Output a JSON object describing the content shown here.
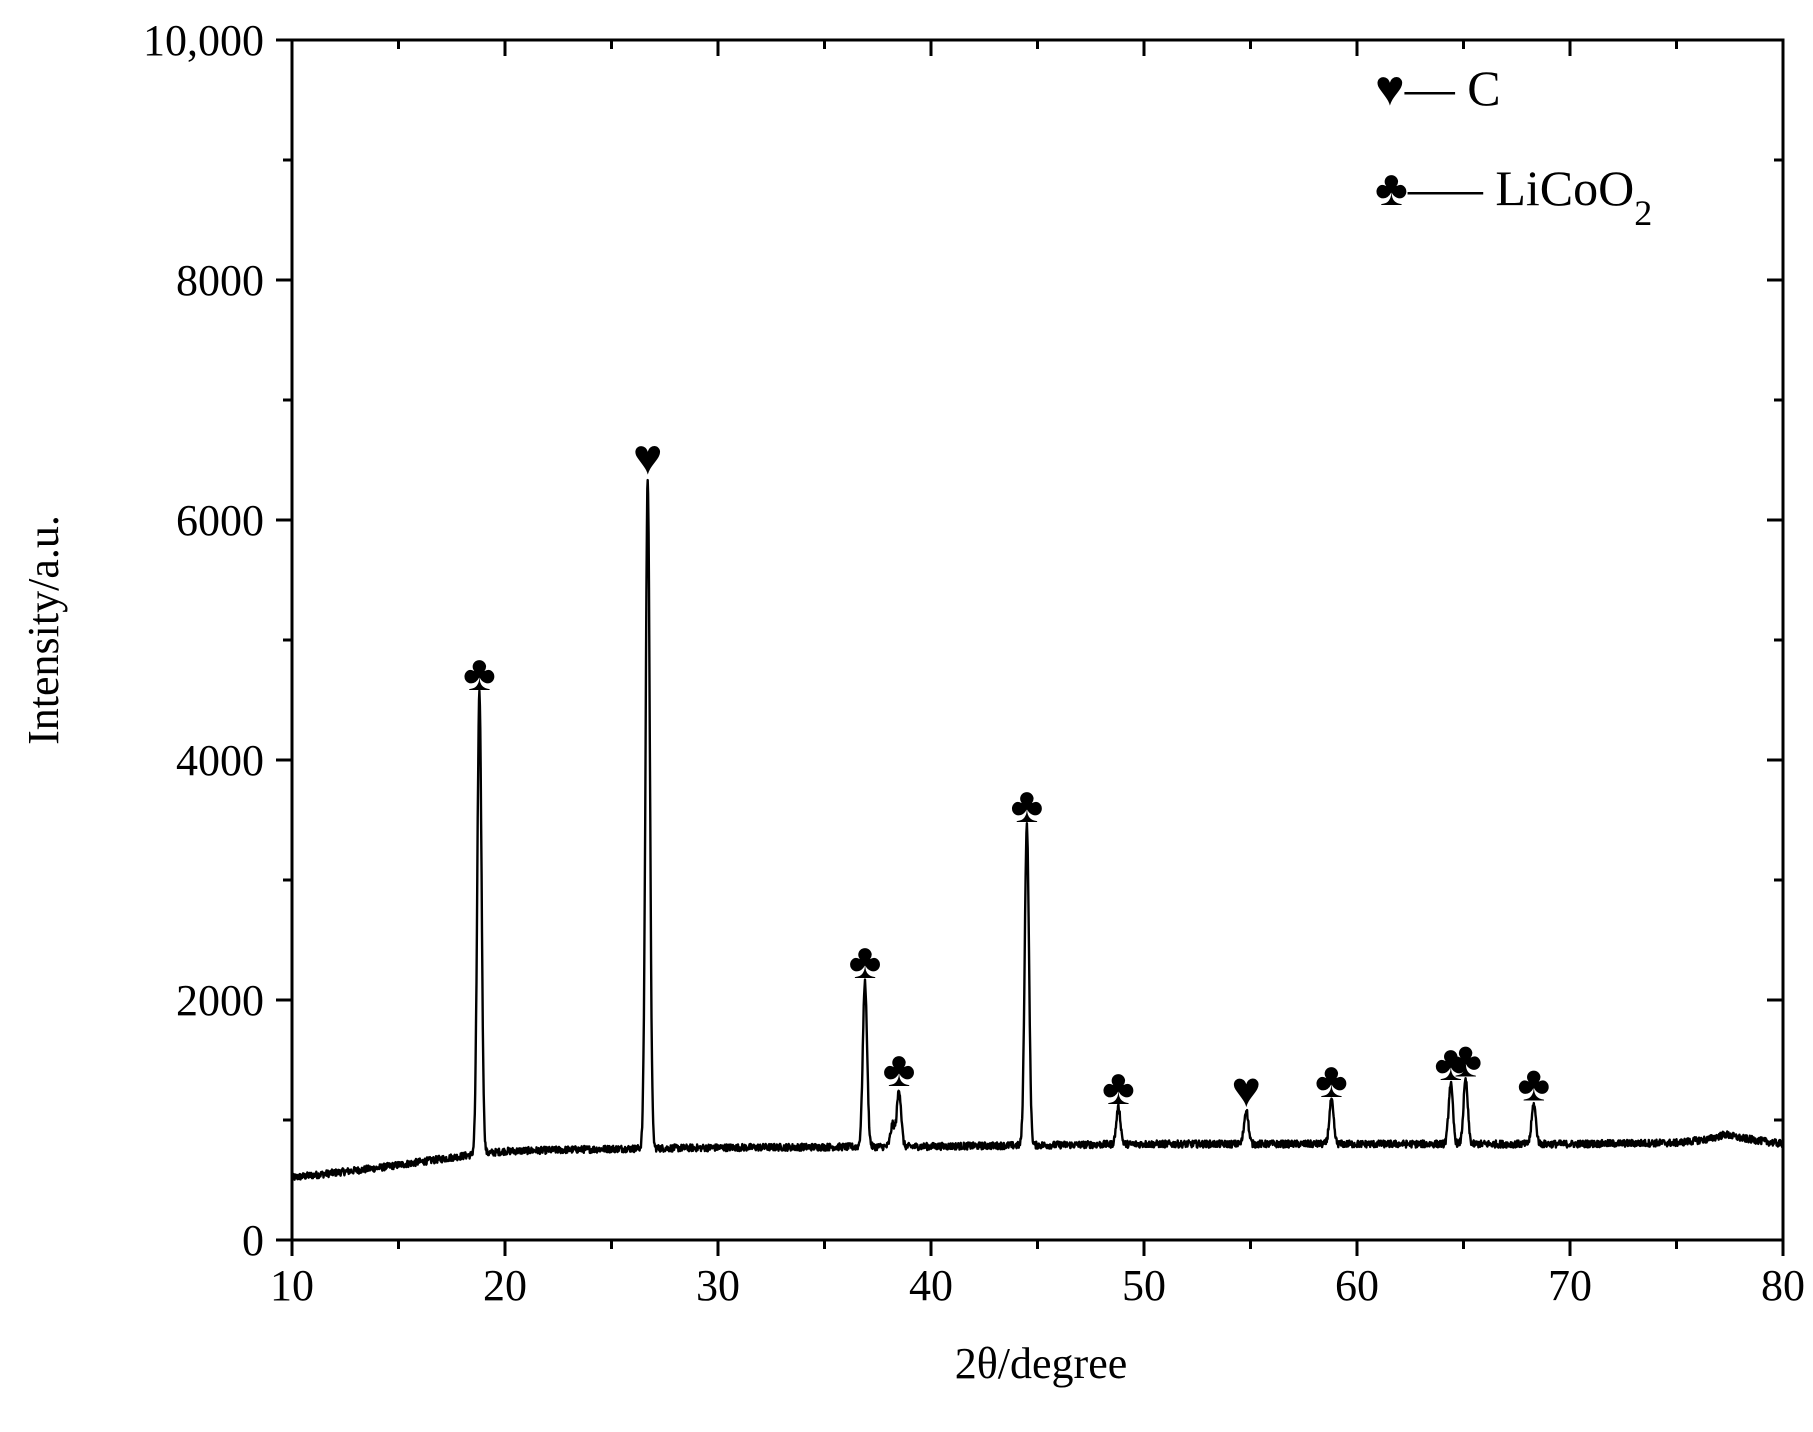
{
  "chart_data": {
    "type": "line",
    "title": "",
    "xlabel": "2θ/degree",
    "ylabel": "Intensity/a.u.",
    "xlim": [
      10,
      80
    ],
    "ylim": [
      0,
      10000
    ],
    "x_ticks": [
      10,
      20,
      30,
      40,
      50,
      60,
      70,
      80
    ],
    "y_ticks": [
      0,
      2000,
      4000,
      6000,
      8000,
      10000
    ],
    "x_tick_labels": [
      "10",
      "20",
      "30",
      "40",
      "50",
      "60",
      "70",
      "80"
    ],
    "y_tick_labels": [
      "0",
      "2000",
      "4000",
      "6000",
      "8000",
      "10,000"
    ],
    "grid": false,
    "legend_position": "top-right",
    "legend": [
      {
        "symbol": "♥",
        "dash": "–– ",
        "label": "C",
        "subscript": ""
      },
      {
        "symbol": "♣",
        "dash": "—– ",
        "label": "LiCoO",
        "subscript": "2"
      }
    ],
    "baseline": [
      [
        10,
        520
      ],
      [
        12,
        560
      ],
      [
        14,
        600
      ],
      [
        16,
        650
      ],
      [
        18,
        700
      ],
      [
        20,
        740
      ],
      [
        25,
        760
      ],
      [
        30,
        770
      ],
      [
        35,
        775
      ],
      [
        40,
        780
      ],
      [
        45,
        790
      ],
      [
        50,
        800
      ],
      [
        55,
        800
      ],
      [
        60,
        800
      ],
      [
        65,
        800
      ],
      [
        70,
        800
      ],
      [
        75,
        810
      ],
      [
        76.5,
        840
      ],
      [
        77.3,
        880
      ],
      [
        78,
        850
      ],
      [
        80,
        800
      ]
    ],
    "peaks": [
      {
        "x": 18.8,
        "y": 4550,
        "phase": "LiCoO2",
        "marker": "♣"
      },
      {
        "x": 26.7,
        "y": 6350,
        "phase": "C",
        "marker": "♥"
      },
      {
        "x": 36.9,
        "y": 2150,
        "phase": "LiCoO2",
        "marker": "♣"
      },
      {
        "x": 38.2,
        "y": 960,
        "phase": "",
        "marker": ""
      },
      {
        "x": 38.5,
        "y": 1250,
        "phase": "LiCoO2",
        "marker": "♣"
      },
      {
        "x": 44.5,
        "y": 3450,
        "phase": "LiCoO2",
        "marker": "♣"
      },
      {
        "x": 48.8,
        "y": 1100,
        "phase": "LiCoO2",
        "marker": "♣"
      },
      {
        "x": 54.8,
        "y": 1080,
        "phase": "C",
        "marker": "♥"
      },
      {
        "x": 58.8,
        "y": 1160,
        "phase": "LiCoO2",
        "marker": "♣"
      },
      {
        "x": 64.4,
        "y": 1300,
        "phase": "LiCoO2",
        "marker": "♣"
      },
      {
        "x": 65.1,
        "y": 1330,
        "phase": "LiCoO2",
        "marker": "♣"
      },
      {
        "x": 68.3,
        "y": 1130,
        "phase": "LiCoO2",
        "marker": "♣"
      }
    ]
  }
}
